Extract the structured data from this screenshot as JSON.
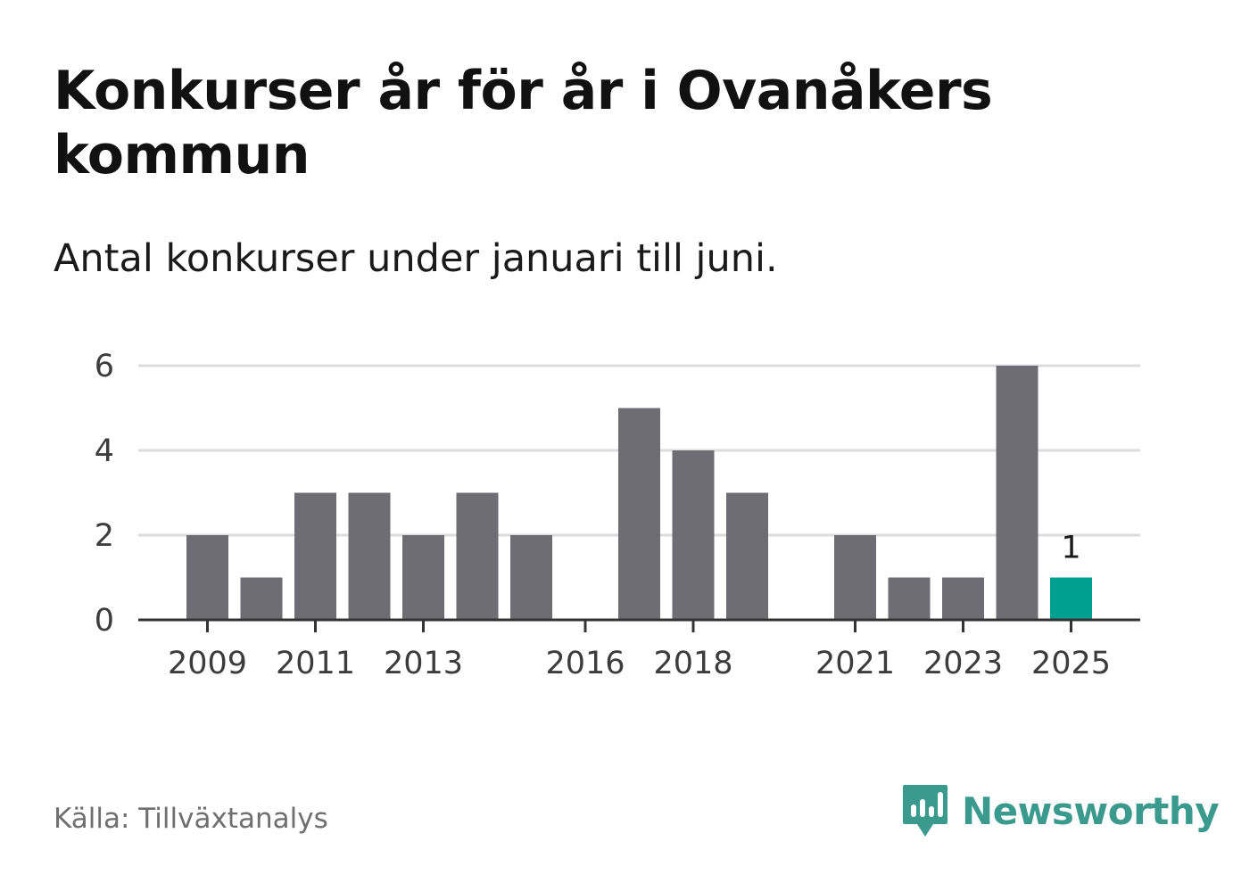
{
  "header": {
    "title": "Konkurser år för år i Ovanåkers kommun",
    "subtitle": "Antal konkurser under januari till juni."
  },
  "footer": {
    "source": "Källa: Tillväxtanalys",
    "brand": "Newsworthy",
    "brand_icon": "newsworthy-logo-icon"
  },
  "colors": {
    "bar": "#6e6d73",
    "highlight": "#00a091",
    "grid": "#dcdcdc",
    "axis": "#333333",
    "brand": "#3a9a8e"
  },
  "chart_data": {
    "type": "bar",
    "title": "Konkurser år för år i Ovanåkers kommun",
    "subtitle": "Antal konkurser under januari till juni.",
    "categories": [
      "2009",
      "2010",
      "2011",
      "2012",
      "2013",
      "2014",
      "2015",
      "2016",
      "2017",
      "2018",
      "2019",
      "2020",
      "2021",
      "2022",
      "2023",
      "2024",
      "2025"
    ],
    "values": [
      2,
      1,
      3,
      3,
      2,
      3,
      2,
      0,
      5,
      4,
      3,
      0,
      2,
      1,
      1,
      6,
      1
    ],
    "x_tick_labels": [
      "2009",
      "2011",
      "2013",
      "2016",
      "2018",
      "2021",
      "2023",
      "2025"
    ],
    "y_ticks": [
      "0",
      "2",
      "4",
      "6"
    ],
    "ylim": [
      0,
      6
    ],
    "xlabel": "",
    "ylabel": "",
    "grid": true,
    "highlighted_category": "2025",
    "data_labels": [
      {
        "category": "2025",
        "text": "1"
      }
    ]
  }
}
